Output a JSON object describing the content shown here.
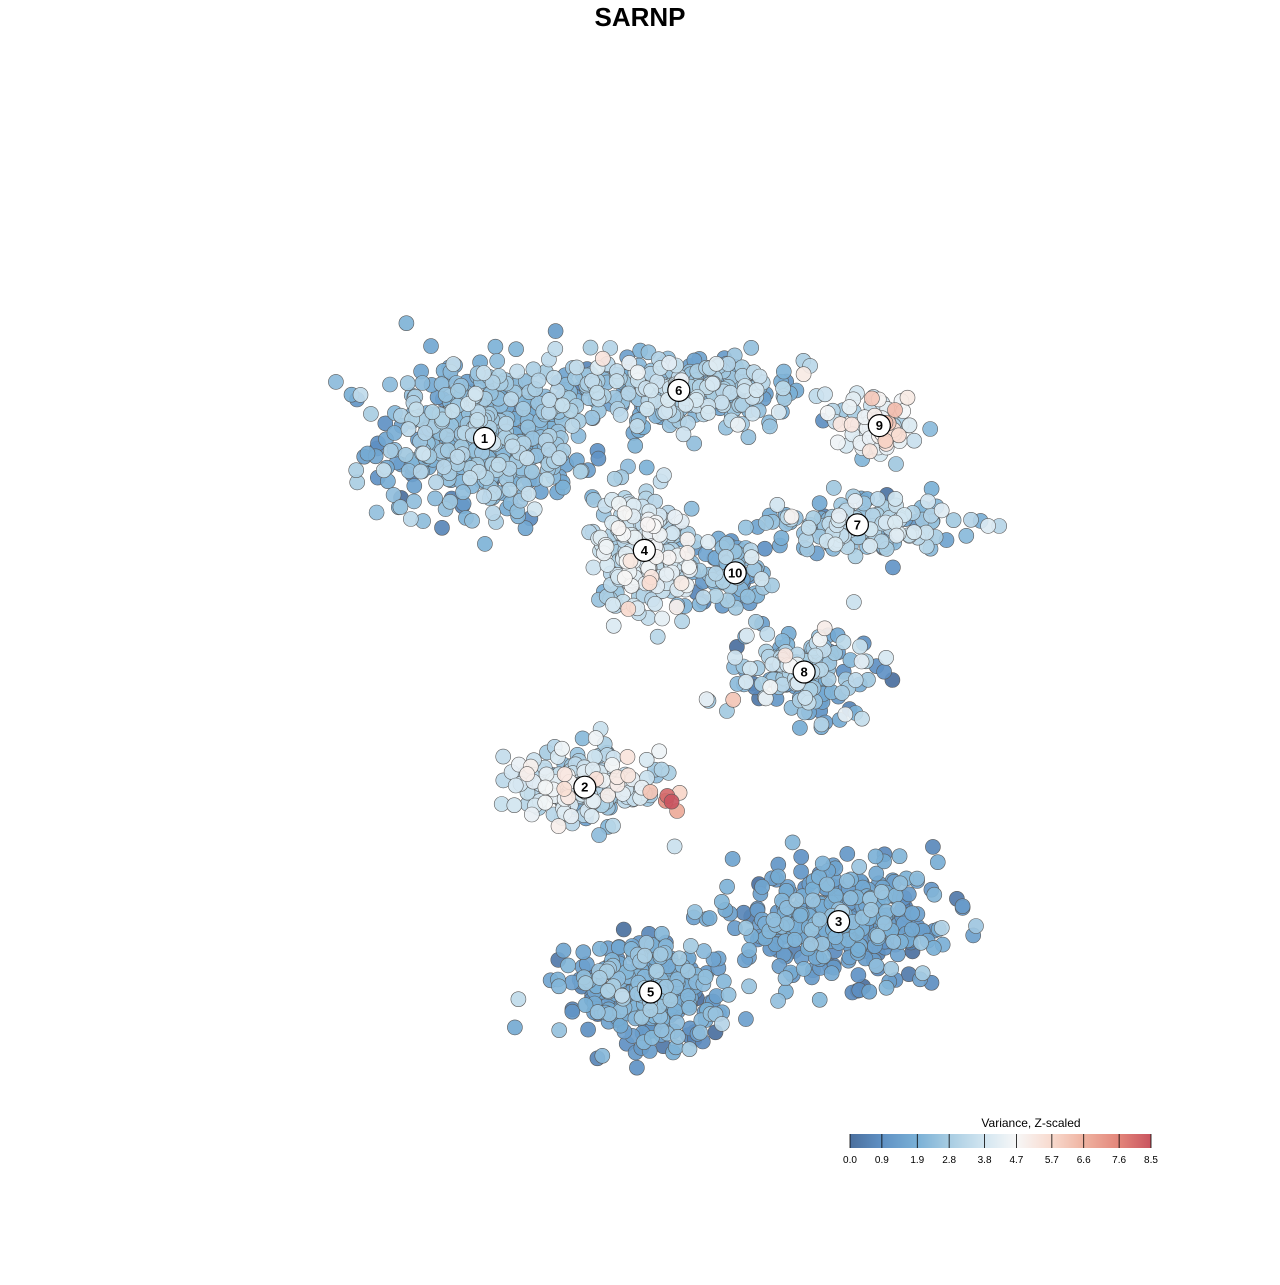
{
  "chart_data": {
    "type": "scatter",
    "title": "SARNP",
    "xlabel": "",
    "ylabel": "",
    "grid": false,
    "axes_visible": false,
    "legend": {
      "title": "Variance, Z-scaled",
      "placement": "bottom-right",
      "range": [
        0.0,
        8.5
      ],
      "tick_labels": [
        "0.0",
        "0.9",
        "1.9",
        "2.8",
        "3.8",
        "4.7",
        "5.7",
        "6.6",
        "7.6",
        "8.5"
      ],
      "tick_values": [
        0.0,
        0.9,
        1.9,
        2.8,
        3.8,
        4.7,
        5.7,
        6.6,
        7.6,
        8.5
      ],
      "color_stops": [
        {
          "value": 0.0,
          "color": "#4a6f9e"
        },
        {
          "value": 0.9,
          "color": "#5f91c4"
        },
        {
          "value": 1.9,
          "color": "#7ab0d6"
        },
        {
          "value": 2.8,
          "color": "#a7cce2"
        },
        {
          "value": 3.8,
          "color": "#d3e6f1"
        },
        {
          "value": 4.7,
          "color": "#f7f7f7"
        },
        {
          "value": 5.7,
          "color": "#f8dace"
        },
        {
          "value": 6.6,
          "color": "#efb3a1"
        },
        {
          "value": 7.6,
          "color": "#e3857a"
        },
        {
          "value": 8.5,
          "color": "#c9545f"
        }
      ]
    },
    "clusters": [
      {
        "label": "1",
        "x": -5.6,
        "y": 6.3,
        "sx": 2.2,
        "sy": 1.6,
        "n": 520,
        "mean": 2.1,
        "sd": 0.7
      },
      {
        "label": "6",
        "x": 0.6,
        "y": 7.8,
        "sx": 2.7,
        "sy": 0.8,
        "n": 330,
        "mean": 2.6,
        "sd": 0.8
      },
      {
        "label": "9",
        "x": 7.0,
        "y": 6.7,
        "sx": 0.9,
        "sy": 0.6,
        "n": 90,
        "mean": 3.8,
        "sd": 1.0
      },
      {
        "label": "7",
        "x": 6.3,
        "y": 3.6,
        "sx": 2.1,
        "sy": 0.6,
        "n": 160,
        "mean": 2.7,
        "sd": 0.9
      },
      {
        "label": "4",
        "x": -0.5,
        "y": 2.8,
        "sx": 1.1,
        "sy": 1.2,
        "n": 240,
        "mean": 3.4,
        "sd": 0.8
      },
      {
        "label": "10",
        "x": 2.4,
        "y": 2.1,
        "sx": 0.8,
        "sy": 0.8,
        "n": 90,
        "mean": 1.8,
        "sd": 0.8
      },
      {
        "label": "8",
        "x": 4.6,
        "y": -1.0,
        "sx": 1.6,
        "sy": 1.0,
        "n": 170,
        "mean": 2.2,
        "sd": 1.1
      },
      {
        "label": "2",
        "x": -2.4,
        "y": -4.6,
        "sx": 1.6,
        "sy": 0.8,
        "n": 190,
        "mean": 3.4,
        "sd": 0.9
      },
      {
        "label": "3",
        "x": 5.7,
        "y": -8.8,
        "sx": 2.2,
        "sy": 1.1,
        "n": 380,
        "mean": 1.4,
        "sd": 0.6
      },
      {
        "label": "5",
        "x": -0.3,
        "y": -11.0,
        "sx": 1.6,
        "sy": 1.0,
        "n": 340,
        "mean": 1.5,
        "sd": 0.7
      }
    ],
    "hotspot": {
      "x": 0.3,
      "y": -5.0,
      "values": [
        8.5,
        8.1,
        7.4,
        6.8,
        6.2,
        5.8
      ]
    },
    "xlim": [
      -15,
      15
    ],
    "ylim": [
      -15,
      15
    ]
  }
}
